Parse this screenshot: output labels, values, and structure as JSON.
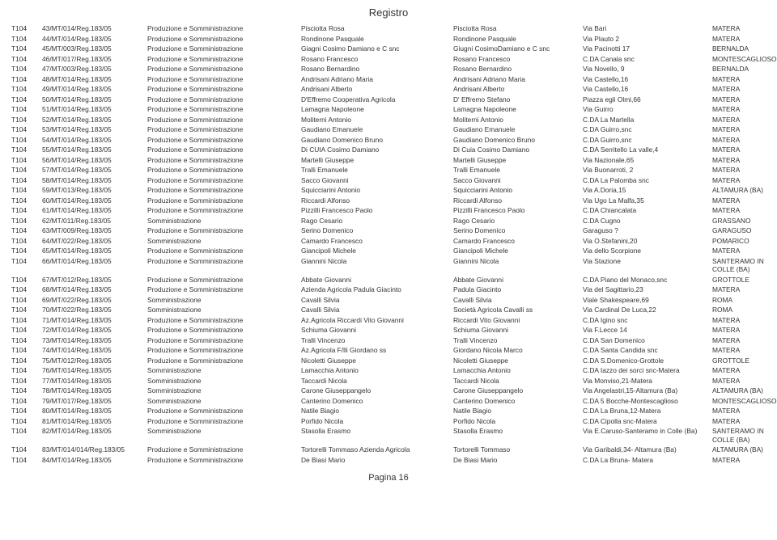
{
  "title": "Registro",
  "footer": "Pagina 16",
  "columns": [
    {
      "key": "c1",
      "class": "c1"
    },
    {
      "key": "c2",
      "class": "c2"
    },
    {
      "key": "c3",
      "class": "c3"
    },
    {
      "key": "c4",
      "class": "c4"
    },
    {
      "key": "c5",
      "class": "c5"
    },
    {
      "key": "c6",
      "class": "c6"
    },
    {
      "key": "c7",
      "class": "c7"
    }
  ],
  "rows": [
    [
      "T104",
      "43/MT/014/Reg.183/05",
      "Produzione e Somministrazione",
      "Pisciotta Rosa",
      "Pisciotta Rosa",
      "Via Bari",
      "MATERA"
    ],
    [
      "T104",
      "44/MT/014/Reg.183/05",
      "Produzione e Somministrazione",
      "Rondinone Pasquale",
      "Rondinone Pasquale",
      "Via Plauto 2",
      "MATERA"
    ],
    [
      "T104",
      "45/MT/003/Reg.183/05",
      "Produzione e Somministrazione",
      "Giagni Cosimo Damiano e C snc",
      "Giugni CosimoDamiano e C snc",
      "Via Pacinotti 17",
      "BERNALDA"
    ],
    [
      "T104",
      "46/MT/017/Reg.183/05",
      "Produzione e Somministrazione",
      "Rosano Francesco",
      "Rosano Francesco",
      "C.DA Canala snc",
      "MONTESCAGLIOSO"
    ],
    [
      "T104",
      "47/MT/003/Reg.183/05",
      "Produzione e Somministrazione",
      "Rosano Bernardino",
      "Rosano Bernardino",
      "Via Novello, 9",
      "BERNALDA"
    ],
    [
      "T104",
      "48/MT/014/Reg.183/05",
      "Produzione e Somministrazione",
      "Andrisani Adriano Maria",
      "Andrisani Adriano Maria",
      "Via Castello,16",
      "MATERA"
    ],
    [
      "T104",
      "49/MT/014/Reg.183/05",
      "Produzione e Somministrazione",
      "Andrisani Alberto",
      "Andrisani Alberto",
      "Via Castello,16",
      "MATERA"
    ],
    [
      "T104",
      "50/MT/014/Reg.183/05",
      "Produzione e Somministrazione",
      "D'Effremo Cooperativa Agricola",
      "D' Effremo Stefano",
      "Piazza egli Olmi,66",
      "MATERA"
    ],
    [
      "T104",
      "51/MT/014/Reg.183/05",
      "Produzione e Somministrazione",
      "Lamagna Napoleone",
      "Lamagna Napoleone",
      "Via Guirro",
      "MATERA"
    ],
    [
      "T104",
      "52/MT/014/Reg.183/05",
      "Produzione e Somministrazione",
      "Moliterni Antonio",
      "Moliterni Antonio",
      "C.DA La Martella",
      "MATERA"
    ],
    [
      "T104",
      "53/MT/014/Reg.183/05",
      "Produzione e Somministrazione",
      "Gaudiano Emanuele",
      "Gaudiano Emanuele",
      "C.DA Guirro,snc",
      "MATERA"
    ],
    [
      "T104",
      "54/MT/014/Reg.183/05",
      "Produzione e Somministrazione",
      "Gaudiano Domenico Bruno",
      "Gaudiano Domenico Bruno",
      "C.DA Guirro,snc",
      "MATERA"
    ],
    [
      "T104",
      "55/MT/014/Reg.183/05",
      "Produzione e Somministrazione",
      "Di CUIA Cosimo Damiano",
      "Di Cuia Cosimo Damiano",
      "C.DA Serritello La valle,4",
      "MATERA"
    ],
    [
      "T104",
      "56/MT/014/Reg.183/05",
      "Produzione e Somministrazione",
      "Martelli Giuseppe",
      "Martelli Giuseppe",
      "Via Nazionale,65",
      "MATERA"
    ],
    [
      "T104",
      "57/MT/014/Reg.183/05",
      "Produzione e Somministrazione",
      "Tralli Emanuele",
      "Tralli Emanuele",
      "Via Buonarroti, 2",
      "MATERA"
    ],
    [
      "T104",
      "58/MT/014/Reg.183/05",
      "Produzione e Somministrazione",
      "Sacco Giovanni",
      "Sacco Giovanni",
      "C.DA La Palomba snc",
      "MATERA"
    ],
    [
      "T104",
      "59/MT/013/Reg.183/05",
      "Produzione e Somministrazione",
      "Squicciarini Antonio",
      "Squicciarini Antonio",
      "Via A.Doria,15",
      "ALTAMURA (BA)"
    ],
    [
      "T104",
      "60/MT/014/Reg.183/05",
      "Produzione e Somministrazione",
      "Riccardi Alfonso",
      "Riccardi Alfonso",
      "Via Ugo La Malfa,35",
      "MATERA"
    ],
    [
      "T104",
      "61/MT/014/Reg.183/05",
      "Produzione e Somministrazione",
      "Pizzilli Francesco Paolo",
      "Pizzilli Francesco Paolo",
      "C.DA Chiancalata",
      "MATERA"
    ],
    [
      "T104",
      "62/MT/011/Reg.183/05",
      "Somministrazione",
      "Rago Cesario",
      "Rago Cesario",
      "C.DA Cugno",
      "GRASSANO"
    ],
    [
      "T104",
      "63/MT/009/Reg.183/05",
      "Produzione e Somministrazione",
      "Serino Domenico",
      "Serino Domenico",
      "Garaguso ?",
      "GARAGUSO"
    ],
    [
      "T104",
      "64/MT/022/Reg.183/05",
      "Somministrazione",
      "Camardo Francesco",
      "Camardo Francesco",
      "Via O.Stefanini,20",
      "POMARICO"
    ],
    [
      "T104",
      "65/MT/014/Reg.183/05",
      "Produzione e Somministrazione",
      "Giancipoli Michele",
      "Giancipoli Michele",
      "Via dello Scorpione",
      "MATERA"
    ],
    [
      "T104",
      "66/MT/014/Reg.183/05",
      "Produzione e Somministrazione",
      "Giannini Nicola",
      "Giannini Nicola",
      "Via Stazione",
      "SANTERAMO IN COLLE (BA)"
    ],
    [
      "T104",
      "67/MT/012/Reg.183/05",
      "Produzione e Somministrazione",
      "Abbate Giovanni",
      "Abbate Giovanni",
      "C.DA Piano del Monaco,snc",
      "GROTTOLE"
    ],
    [
      "T104",
      "68/MT/014/Reg.183/05",
      "Produzione e Somministrazione",
      "Azienda Agricola Padula Giacinto",
      "Padula Giacinto",
      "Via del Sagittario,23",
      "MATERA"
    ],
    [
      "T104",
      "69/MT/022/Reg.183/05",
      "Somministrazione",
      "Cavalli Silvia",
      "Cavalli Silvia",
      "Viale Shakespeare,69",
      "ROMA"
    ],
    [
      "T104",
      "70/MT/022/Reg.183/05",
      "Somministrazione",
      "Cavalli Silvia",
      "Società Agricola Cavalli ss",
      "Via Cardinal De Luca,22",
      "ROMA"
    ],
    [
      "T104",
      "71/MT/014/Reg.183/05",
      "Produzione e Somministrazione",
      "Az.Agricola Riccardi Vito Giovanni",
      "Riccardi Vito Giovanni",
      "C.DA Igino snc",
      "MATERA"
    ],
    [
      "T104",
      "72/MT/014/Reg.183/05",
      "Produzione e Somministrazione",
      "Schiuma Giovanni",
      "Schiuma Giovanni",
      "Via F.Lecce 14",
      "MATERA"
    ],
    [
      "T104",
      "73/MT/014/Reg.183/05",
      "Produzione e Somministrazione",
      "Tralli Vincenzo",
      "Tralli Vincenzo",
      "C.DA San Domenico",
      "MATERA"
    ],
    [
      "T104",
      "74/MT/014/Reg.183/05",
      "Produzione e Somministrazione",
      "Az.Agricola F/lli Giordano ss",
      "Giordano Nicola Marco",
      "C.DA Santa Candida snc",
      "MATERA"
    ],
    [
      "T104",
      "75/MT/012/Reg.183/05",
      "Produzione e Somministrazione",
      "Nicoletti Giuseppe",
      "Nicoletti Giuseppe",
      "C.DA S.Domenico-Grottole",
      "GROTTOLE"
    ],
    [
      "T104",
      "76/MT/014/Reg.183/05",
      "Somministrazione",
      "Lamacchia Antonio",
      "Lamacchia Antonio",
      "C.DA Iazzo dei sorci snc-Matera",
      "MATERA"
    ],
    [
      "T104",
      "77/MT/014/Reg.183/05",
      "Somministrazione",
      "Taccardi Nicola",
      "Taccardi Nicola",
      "Via Monviso,21-Matera",
      "MATERA"
    ],
    [
      "T104",
      "78/MT/014/Reg.183/05",
      "Somministrazione",
      "Carone Giuseppangelo",
      "Carone Giuseppangelo",
      "Via Angelastri,15-Altamura (Ba)",
      "ALTAMURA (BA)"
    ],
    [
      "T104",
      "79/MT/017/Reg.183/05",
      "Somministrazione",
      "Canterino Domenico",
      "Canterino Domenico",
      "C.DA 5 Bocche-Montescaglioso",
      "MONTESCAGLIOSO"
    ],
    [
      "T104",
      "80/MT/014/Reg.183/05",
      "Produzione e Somministrazione",
      "Natile Biagio",
      "Natile Biagio",
      "C.DA La Bruna,12-Matera",
      "MATERA"
    ],
    [
      "T104",
      "81/MT/014/Reg.183/05",
      "Produzione e Somministrazione",
      "Porfido Nicola",
      "Porfido Nicola",
      "C.DA Cipolla snc-Matera",
      "MATERA"
    ],
    [
      "T104",
      "82/MT/014/Reg.183/05",
      "Somministrazione",
      "Stasolla Erasmo",
      "Stasolla Erasmo",
      "Via E.Caruso-Santeramo in Colle (Ba)",
      "SANTERAMO IN COLLE (BA)"
    ],
    [
      "T104",
      "83/MT/014/014/Reg.183/05",
      "Produzione e Somministrazione",
      "Tortorelli Tommaso Azienda Agricola",
      "Tortorelli Tommaso",
      "Via Garibaldi,34- Altamura (Ba)",
      "ALTAMURA (BA)"
    ],
    [
      "T104",
      "84/MT/014/Reg.183/05",
      "Produzione e Somministrazione",
      "De Biasi Mario",
      "De Biasi Mario",
      "C.DA  La Bruna- Matera",
      "MATERA"
    ]
  ]
}
